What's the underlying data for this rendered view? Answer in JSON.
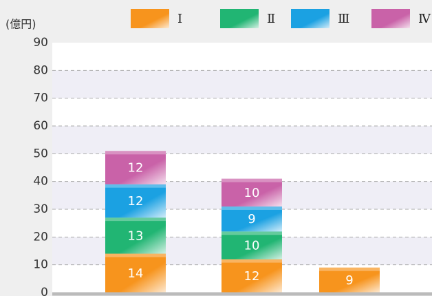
{
  "chart_data": {
    "type": "stacked_bar",
    "y_label": "(億円)",
    "categories": [
      null,
      null,
      null
    ],
    "series": [
      {
        "name": "Ⅰ",
        "color": "#f7941d",
        "values": [
          14,
          12,
          9
        ]
      },
      {
        "name": "Ⅱ",
        "color": "#21b573",
        "values": [
          13,
          10,
          null
        ]
      },
      {
        "name": "Ⅲ",
        "color": "#1ba1e2",
        "values": [
          12,
          9,
          null
        ]
      },
      {
        "name": "Ⅳ",
        "color": "#c962a8",
        "values": [
          12,
          10,
          null
        ]
      }
    ],
    "ylim": [
      0,
      90
    ],
    "yticks": [
      0,
      10,
      20,
      30,
      40,
      50,
      60,
      70,
      80,
      90
    ],
    "grid": true
  }
}
